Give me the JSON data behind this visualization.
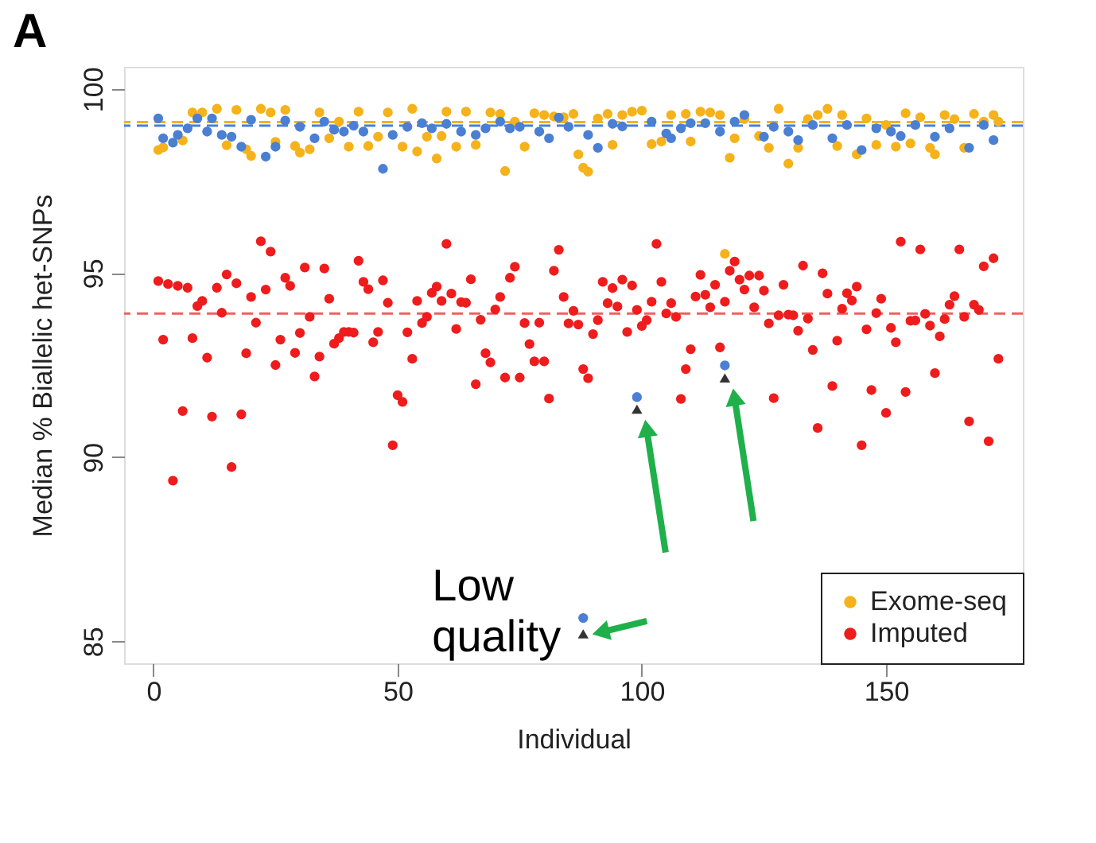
{
  "chart_data": {
    "type": "scatter",
    "title": "A",
    "xlabel": "Individual",
    "ylabel": "Median % Biallelic het-SNPs",
    "xlim": [
      -6,
      178
    ],
    "xticks": [
      0,
      50,
      100,
      150
    ],
    "ylim": [
      84.4,
      100.6
    ],
    "yticks": [
      85,
      90,
      95,
      100
    ],
    "grid": false,
    "legend": "bottom right",
    "marker": "circle",
    "series": [
      {
        "name": "Exome-seq",
        "color": "#f5b21b",
        "x": [
          1,
          2,
          6,
          8,
          10,
          13,
          15,
          17,
          19,
          20,
          22,
          24,
          25,
          27,
          29,
          30,
          32,
          34,
          36,
          38,
          40,
          42,
          44,
          46,
          48,
          51,
          53,
          54,
          56,
          58,
          59,
          60,
          62,
          64,
          66,
          69,
          71,
          72,
          74,
          76,
          78,
          80,
          82,
          84,
          86,
          87,
          88,
          89,
          91,
          93,
          94,
          96,
          98,
          100,
          102,
          104,
          106,
          109,
          110,
          112,
          114,
          116,
          117,
          118,
          119,
          121,
          124,
          126,
          128,
          130,
          132,
          134,
          136,
          138,
          140,
          141,
          144,
          146,
          148,
          150,
          152,
          154,
          155,
          157,
          159,
          160,
          162,
          164,
          166,
          168,
          170,
          172,
          173
        ],
        "values": [
          98.34,
          98.41,
          98.6,
          99.36,
          99.36,
          99.46,
          98.47,
          99.43,
          98.36,
          98.18,
          99.46,
          99.36,
          98.56,
          99.43,
          98.45,
          98.27,
          98.36,
          99.36,
          98.66,
          99.11,
          98.43,
          99.38,
          98.45,
          98.7,
          99.36,
          98.43,
          99.46,
          98.3,
          98.7,
          98.11,
          98.72,
          99.38,
          98.43,
          99.38,
          98.48,
          99.36,
          99.32,
          97.77,
          99.11,
          98.43,
          99.34,
          99.29,
          99.25,
          99.23,
          99.32,
          98.22,
          97.86,
          97.75,
          99.2,
          99.32,
          98.48,
          99.29,
          99.38,
          99.41,
          98.5,
          98.57,
          99.29,
          99.32,
          98.57,
          99.38,
          99.36,
          99.29,
          95.52,
          98.13,
          98.66,
          99.18,
          98.72,
          98.4,
          99.46,
          97.97,
          98.4,
          99.18,
          99.29,
          99.46,
          98.45,
          99.29,
          98.22,
          99.2,
          98.48,
          99.02,
          98.43,
          99.34,
          98.52,
          99.23,
          98.4,
          98.22,
          99.29,
          99.18,
          98.4,
          99.32,
          99.11,
          99.29,
          99.11
        ]
      },
      {
        "color": "#4a7fd4",
        "x": [
          1,
          2,
          4,
          5,
          7,
          9,
          11,
          12,
          14,
          16,
          18,
          20,
          23,
          25,
          27,
          30,
          33,
          35,
          37,
          39,
          41,
          43,
          47,
          49,
          52,
          55,
          57,
          60,
          63,
          66,
          68,
          71,
          73,
          75,
          79,
          81,
          83,
          85,
          88,
          89,
          91,
          94,
          96,
          99,
          102,
          105,
          106,
          108,
          110,
          113,
          116,
          117,
          119,
          121,
          125,
          127,
          130,
          132,
          135,
          139,
          142,
          145,
          148,
          151,
          153,
          156,
          160,
          163,
          167,
          170,
          172
        ],
        "values": [
          99.2,
          98.66,
          98.54,
          98.75,
          98.93,
          99.2,
          98.84,
          99.2,
          98.75,
          98.7,
          98.43,
          99.16,
          98.16,
          98.43,
          99.14,
          98.97,
          98.66,
          99.11,
          98.89,
          98.84,
          99.0,
          98.84,
          97.83,
          98.75,
          98.97,
          99.07,
          98.93,
          99.05,
          98.84,
          98.75,
          98.93,
          99.11,
          98.93,
          98.97,
          98.84,
          98.66,
          99.22,
          98.97,
          85.63,
          98.75,
          98.4,
          99.05,
          98.98,
          91.63,
          99.11,
          98.79,
          98.66,
          98.93,
          99.07,
          99.07,
          98.84,
          92.49,
          99.11,
          99.29,
          98.7,
          98.97,
          98.84,
          98.61,
          99.02,
          98.66,
          99.02,
          98.34,
          98.93,
          98.84,
          98.72,
          99.02,
          98.7,
          98.93,
          98.4,
          99.02,
          98.61
        ]
      },
      {
        "name": "Imputed",
        "color": "#ee1c1c",
        "x": [
          1,
          2,
          3,
          4,
          5,
          6,
          7,
          8,
          9,
          10,
          11,
          12,
          13,
          14,
          15,
          16,
          17,
          18,
          19,
          20,
          21,
          22,
          23,
          24,
          25,
          26,
          27,
          28,
          29,
          30,
          31,
          32,
          33,
          34,
          35,
          36,
          37,
          38,
          39,
          40,
          41,
          42,
          43,
          44,
          45,
          46,
          47,
          48,
          49,
          50,
          51,
          52,
          53,
          54,
          55,
          56,
          57,
          58,
          59,
          60,
          61,
          62,
          63,
          64,
          65,
          66,
          67,
          68,
          69,
          70,
          71,
          72,
          73,
          74,
          75,
          76,
          77,
          78,
          79,
          80,
          81,
          82,
          83,
          84,
          85,
          86,
          87,
          88,
          89,
          90,
          91,
          92,
          93,
          94,
          95,
          96,
          97,
          98,
          99,
          100,
          101,
          102,
          103,
          104,
          105,
          106,
          107,
          108,
          109,
          110,
          111,
          112,
          113,
          114,
          115,
          116,
          117,
          118,
          119,
          120,
          121,
          122,
          123,
          124,
          125,
          126,
          127,
          128,
          129,
          130,
          131,
          132,
          133,
          134,
          135,
          136,
          137,
          138,
          139,
          140,
          141,
          142,
          143,
          144,
          145,
          146,
          147,
          148,
          149,
          150,
          151,
          152,
          153,
          154,
          155,
          156,
          157,
          158,
          159,
          160,
          161,
          162,
          163,
          164,
          165,
          166,
          167,
          168,
          169,
          170,
          171,
          172,
          173
        ],
        "values": [
          94.78,
          93.19,
          94.7,
          89.36,
          94.65,
          91.25,
          94.6,
          93.23,
          94.1,
          94.24,
          92.7,
          91.1,
          94.6,
          93.92,
          94.96,
          89.73,
          94.72,
          91.16,
          92.82,
          94.35,
          93.65,
          95.86,
          94.55,
          95.58,
          92.5,
          93.19,
          94.87,
          94.65,
          92.83,
          93.37,
          95.15,
          93.81,
          92.19,
          92.73,
          95.12,
          94.3,
          93.08,
          93.23,
          93.4,
          93.4,
          93.38,
          95.33,
          94.76,
          94.56,
          93.12,
          93.4,
          94.8,
          94.19,
          90.32,
          91.68,
          91.5,
          93.39,
          92.67,
          94.24,
          93.64,
          93.81,
          94.46,
          94.63,
          94.24,
          95.79,
          94.44,
          93.48,
          94.21,
          94.19,
          94.83,
          91.98,
          93.73,
          92.82,
          92.57,
          94.01,
          94.35,
          92.16,
          94.87,
          95.17,
          92.16,
          93.64,
          93.07,
          92.6,
          93.65,
          92.6,
          91.59,
          95.06,
          95.63,
          94.35,
          93.63,
          93.97,
          93.6,
          92.39,
          92.14,
          93.34,
          93.72,
          94.76,
          94.18,
          94.59,
          94.09,
          94.82,
          93.4,
          94.66,
          94.0,
          93.56,
          93.72,
          94.22,
          95.79,
          94.76,
          93.9,
          94.18,
          93.81,
          91.58,
          92.39,
          92.93,
          94.36,
          94.95,
          94.41,
          94.07,
          94.68,
          92.98,
          94.22,
          95.06,
          95.31,
          94.82,
          94.55,
          94.93,
          94.07,
          94.93,
          94.52,
          93.63,
          91.6,
          93.85,
          94.68,
          93.87,
          93.85,
          93.43,
          95.2,
          93.76,
          92.91,
          90.79,
          94.99,
          94.44,
          91.93,
          93.16,
          94.03,
          94.45,
          94.25,
          94.63,
          90.32,
          93.47,
          91.82,
          93.91,
          94.3,
          91.2,
          93.51,
          93.12,
          95.85,
          91.77,
          93.7,
          93.71,
          95.64,
          93.89,
          93.57,
          92.28,
          93.28,
          93.75,
          94.14,
          94.37,
          95.64,
          93.81,
          90.97,
          94.14,
          94.0,
          95.18,
          90.43,
          95.4,
          92.67
        ]
      },
      {
        "color": "#333333",
        "marker": "triangle",
        "x": [
          88,
          99,
          117
        ],
        "values": [
          85.2,
          91.3,
          92.15
        ]
      }
    ],
    "ref_lines": [
      {
        "axis": "y",
        "value": 99.1,
        "color": "#f5b21b",
        "line_style": "dashed"
      },
      {
        "axis": "y",
        "value": 99.0,
        "color": "#4a7fd4",
        "line_style": "dashed"
      },
      {
        "axis": "y",
        "value": 93.9,
        "color": "#f06060",
        "line_style": "dashed"
      }
    ],
    "annotations": [
      {
        "text": "Low quality",
        "x": 88,
        "y": 85.63
      }
    ]
  }
}
